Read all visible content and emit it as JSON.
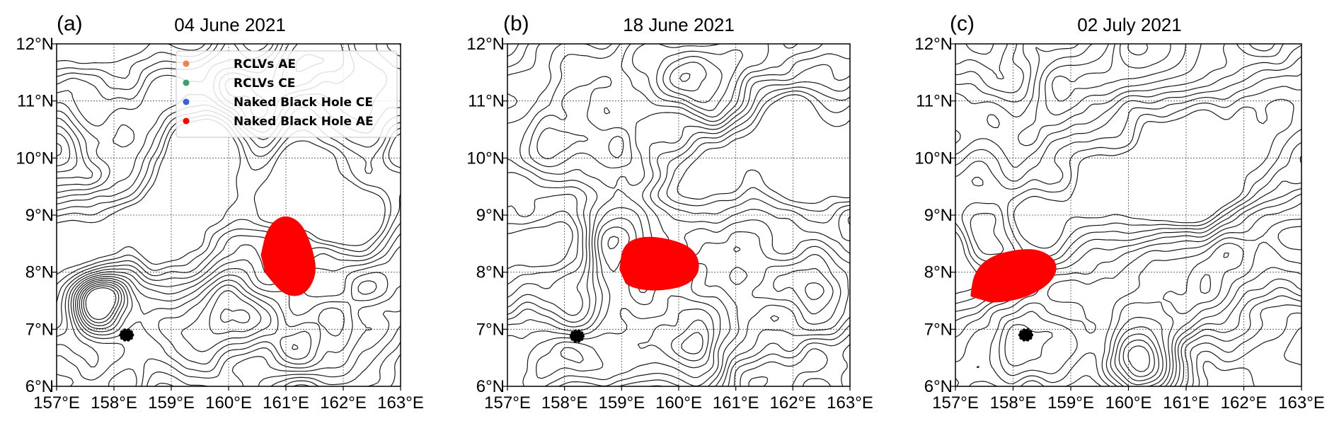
{
  "figure": {
    "panels": [
      {
        "label": "(a)",
        "title": "04 June 2021",
        "x_ticks": [
          "157°E",
          "158°E",
          "159°E",
          "160°E",
          "161°E",
          "162°E",
          "163°E"
        ],
        "y_ticks": [
          "6°N",
          "7°N",
          "8°N",
          "9°N",
          "10°N",
          "11°N",
          "12°N"
        ],
        "blackhole_ae": {
          "lon": 161.05,
          "lat": 8.3,
          "color": "#ff0000",
          "outline": [
            [
              160.6,
              8.3
            ],
            [
              160.7,
              8.75
            ],
            [
              160.95,
              8.98
            ],
            [
              161.25,
              8.85
            ],
            [
              161.45,
              8.35
            ],
            [
              161.5,
              7.95
            ],
            [
              161.3,
              7.62
            ],
            [
              161.0,
              7.62
            ],
            [
              160.75,
              7.9
            ],
            [
              160.6,
              8.1
            ]
          ]
        },
        "small_eddy": {
          "lon": 158.22,
          "lat": 6.9
        }
      },
      {
        "label": "(b)",
        "title": "18 June 2021",
        "x_ticks": [
          "157°E",
          "158°E",
          "159°E",
          "160°E",
          "161°E",
          "162°E",
          "163°E"
        ],
        "y_ticks": [
          "6°N",
          "7°N",
          "8°N",
          "9°N",
          "10°N",
          "11°N",
          "12°N"
        ],
        "blackhole_ae": {
          "lon": 159.7,
          "lat": 8.1,
          "color": "#ff0000",
          "outline": [
            [
              159.0,
              8.05
            ],
            [
              159.05,
              8.45
            ],
            [
              159.35,
              8.6
            ],
            [
              159.85,
              8.55
            ],
            [
              160.25,
              8.38
            ],
            [
              160.35,
              8.05
            ],
            [
              160.15,
              7.8
            ],
            [
              159.65,
              7.7
            ],
            [
              159.2,
              7.75
            ],
            [
              159.0,
              7.9
            ]
          ]
        },
        "small_eddy": {
          "lon": 158.22,
          "lat": 6.88
        }
      },
      {
        "label": "(c)",
        "title": "02 July 2021",
        "x_ticks": [
          "157°E",
          "158°E",
          "159°E",
          "160°E",
          "161°E",
          "162°E",
          "163°E"
        ],
        "y_ticks": [
          "6°N",
          "7°N",
          "8°N",
          "9°N",
          "10°N",
          "11°N",
          "12°N"
        ],
        "blackhole_ae": {
          "lon": 157.9,
          "lat": 7.95,
          "color": "#ff0000",
          "outline": [
            [
              157.3,
              7.6
            ],
            [
              157.35,
              7.95
            ],
            [
              157.55,
              8.2
            ],
            [
              157.95,
              8.35
            ],
            [
              158.45,
              8.38
            ],
            [
              158.75,
              8.15
            ],
            [
              158.65,
              7.85
            ],
            [
              158.25,
              7.6
            ],
            [
              157.8,
              7.5
            ],
            [
              157.4,
              7.52
            ]
          ]
        },
        "small_eddy": {
          "lon": 158.22,
          "lat": 6.9
        }
      }
    ],
    "legend": {
      "items": [
        {
          "label": "RCLVs AE",
          "color": "#f0824a"
        },
        {
          "label": "RCLVs CE",
          "color": "#3c9e6a"
        },
        {
          "label": "Naked Black Hole CE",
          "color": "#3a62d8"
        },
        {
          "label": "Naked Black Hole AE",
          "color": "#ff0000"
        }
      ]
    }
  }
}
